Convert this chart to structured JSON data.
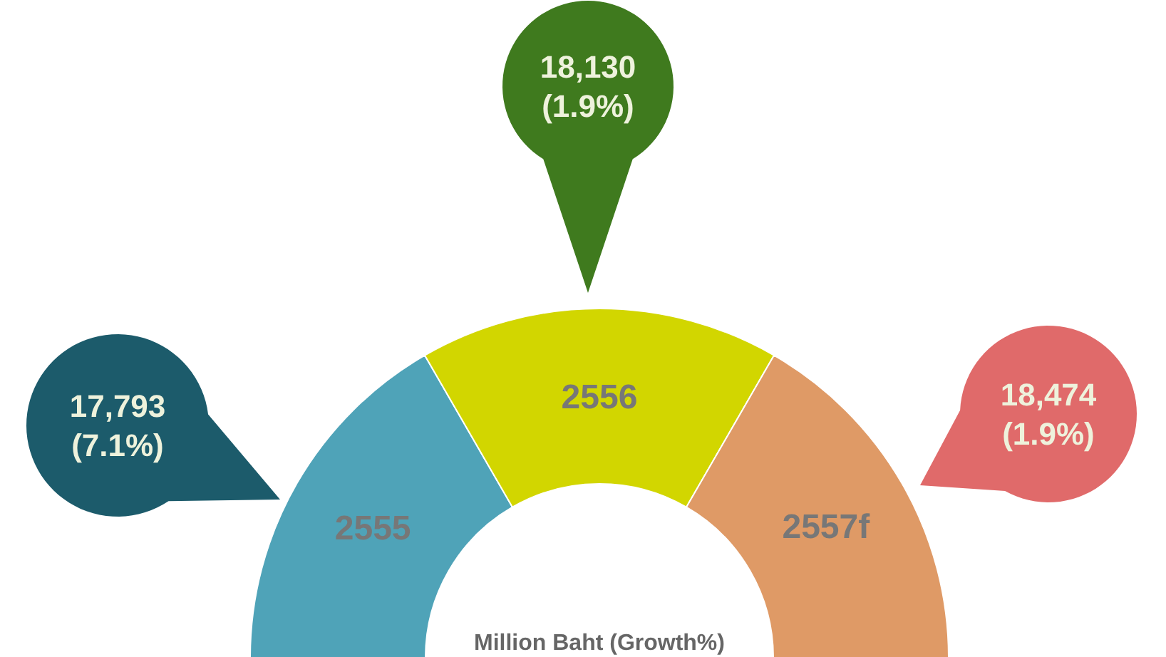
{
  "chart_data": {
    "type": "other",
    "categories": [
      "2555",
      "2556",
      "2557f"
    ],
    "colors": [
      "#4fa3b8",
      "#d2d600",
      "#df9a66"
    ],
    "series": [
      {
        "color": "#1c5b6b",
        "values": [
          17793,
          null,
          null
        ],
        "value_labels": [
          "17,793\n(7.1%)",
          null,
          null
        ]
      },
      {
        "color": "#3f7a1e",
        "values": [
          null,
          18130,
          null
        ],
        "value_labels": [
          null,
          "18,130\n(1.9%)",
          null
        ]
      },
      {
        "color": "#e06a6a",
        "values": [
          null,
          null,
          18474
        ],
        "value_labels": [
          null,
          null,
          "18,474\n(1.9%)"
        ]
      }
    ],
    "annotations": [
      "Million Baht (Growth%)"
    ]
  }
}
